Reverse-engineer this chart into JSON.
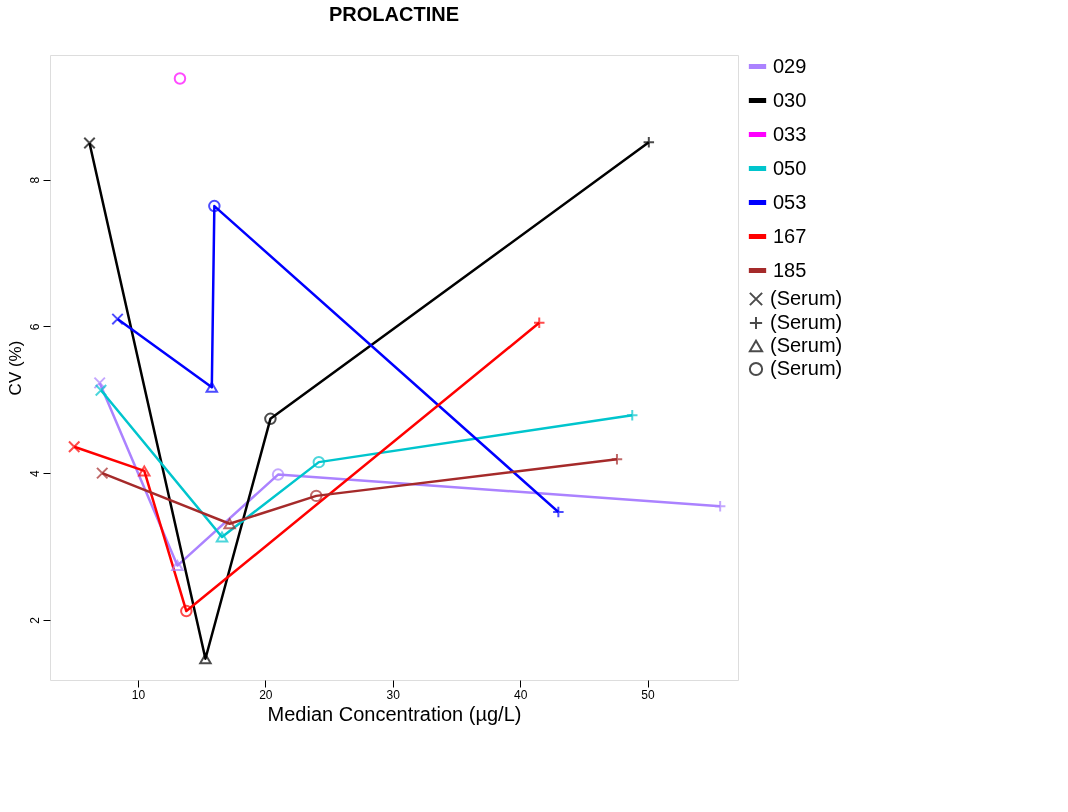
{
  "chart_data": {
    "type": "line",
    "title": "PROLACTINE",
    "xlabel": "Median Concentration  (µg/L)",
    "ylabel": "CV (%)",
    "xlim": [
      3.1,
      57.1
    ],
    "ylim": [
      1.18,
      9.7
    ],
    "xticks": [
      10,
      20,
      30,
      40,
      50
    ],
    "yticks": [
      2,
      4,
      6,
      8
    ],
    "grid": false,
    "legend": "right",
    "marker": "none",
    "line_style": "solid",
    "series": [
      {
        "name": "029",
        "color": "#ab82ff",
        "x": [
          7.0,
          13.1,
          21.0,
          55.7
        ],
        "values": [
          5.23,
          2.74,
          3.98,
          3.55
        ]
      },
      {
        "name": "030",
        "color": "#000000",
        "x": [
          6.2,
          15.3,
          20.4,
          50.1
        ],
        "values": [
          8.5,
          1.47,
          4.74,
          8.51
        ]
      },
      {
        "name": "033",
        "color": "#ff00ff",
        "type": "scatter",
        "marker": "circle",
        "x": [
          13.3
        ],
        "values": [
          9.38
        ]
      },
      {
        "name": "050",
        "color": "#00c5cd",
        "x": [
          7.1,
          16.6,
          24.2,
          48.8
        ],
        "values": [
          5.13,
          3.13,
          4.15,
          4.79
        ]
      },
      {
        "name": "053",
        "color": "#0000ff",
        "x": [
          8.4,
          15.8,
          16.0,
          43.0
        ],
        "values": [
          6.1,
          5.17,
          7.64,
          3.47
        ]
      },
      {
        "name": "167",
        "color": "#ff0000",
        "x": [
          5.0,
          10.5,
          13.8,
          41.5
        ],
        "values": [
          4.36,
          4.03,
          2.12,
          6.05
        ]
      },
      {
        "name": "185",
        "color": "#a52a2a",
        "x": [
          7.2,
          17.2,
          24.0,
          47.6
        ],
        "values": [
          4.0,
          3.31,
          3.69,
          4.19
        ]
      },
      {
        "name": "(Serum)",
        "type": "scatter",
        "marker": "x",
        "x": [
          7.0,
          6.2,
          7.1,
          8.4,
          5.0,
          7.2
        ],
        "values": [
          5.23,
          8.5,
          5.13,
          6.1,
          4.36,
          4.0
        ],
        "colors": [
          "#ab82ff",
          "#000000",
          "#00c5cd",
          "#0000ff",
          "#ff0000",
          "#a52a2a"
        ]
      },
      {
        "name": "(Serum)",
        "type": "scatter",
        "marker": "plus",
        "x": [
          55.7,
          50.1,
          48.8,
          43.0,
          41.5,
          47.6
        ],
        "values": [
          3.55,
          8.51,
          4.79,
          3.47,
          6.05,
          4.19
        ],
        "colors": [
          "#ab82ff",
          "#000000",
          "#00c5cd",
          "#0000ff",
          "#ff0000",
          "#a52a2a"
        ]
      },
      {
        "name": "(Serum)",
        "type": "scatter",
        "marker": "triangle",
        "x": [
          13.1,
          15.3,
          16.6,
          15.8,
          10.5,
          17.2
        ],
        "values": [
          2.74,
          1.47,
          3.13,
          5.17,
          4.03,
          3.31
        ],
        "colors": [
          "#ab82ff",
          "#000000",
          "#00c5cd",
          "#0000ff",
          "#ff0000",
          "#a52a2a"
        ]
      },
      {
        "name": "(Serum)",
        "type": "scatter",
        "marker": "circle",
        "x": [
          21.0,
          20.4,
          24.2,
          16.0,
          13.8,
          24.0
        ],
        "values": [
          3.98,
          4.74,
          4.15,
          7.64,
          2.12,
          3.69
        ],
        "colors": [
          "#ab82ff",
          "#000000",
          "#00c5cd",
          "#0000ff",
          "#ff0000",
          "#a52a2a"
        ]
      }
    ]
  }
}
